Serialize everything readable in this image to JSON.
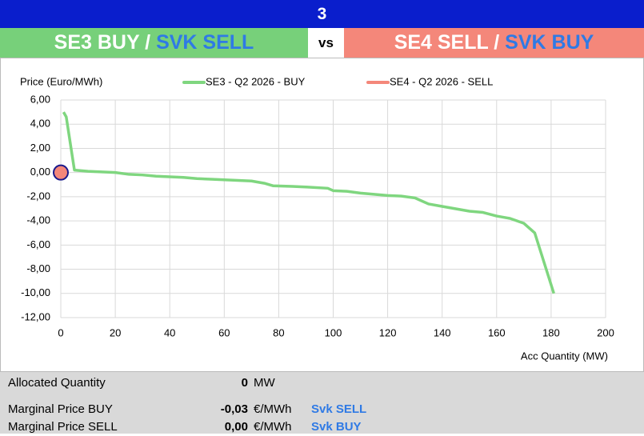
{
  "header": {
    "number": "3",
    "left_a": "SE3 BUY /",
    "left_b": "SVK SELL",
    "vs": "vs",
    "right_a": "SE4 SELL /",
    "right_b": "SVK BUY"
  },
  "chart_data": {
    "type": "line",
    "ylabel": "Price (Euro/MWh)",
    "xlabel": "Acc Quantity (MW)",
    "xlim": [
      0,
      200
    ],
    "xticks": [
      0,
      20,
      40,
      60,
      80,
      100,
      120,
      140,
      160,
      180,
      200
    ],
    "ylim": [
      -12,
      6
    ],
    "yticks": [
      {
        "value": -12,
        "label": "-12,00"
      },
      {
        "value": -10,
        "label": "-10,00"
      },
      {
        "value": -8,
        "label": "-8,00"
      },
      {
        "value": -6,
        "label": "-6,00"
      },
      {
        "value": -4,
        "label": "-4,00"
      },
      {
        "value": -2,
        "label": "-2,00"
      },
      {
        "value": 0,
        "label": "0,00"
      },
      {
        "value": 2,
        "label": "2,00"
      },
      {
        "value": 4,
        "label": "4,00"
      },
      {
        "value": 6,
        "label": "6,00"
      }
    ],
    "grid": true,
    "series": [
      {
        "name": "SE3 - Q2 2026 - BUY",
        "color": "#7fd67f",
        "x": [
          1,
          2,
          5,
          10,
          15,
          20,
          25,
          30,
          35,
          40,
          45,
          50,
          55,
          60,
          65,
          70,
          75,
          78,
          85,
          90,
          98,
          100,
          105,
          110,
          115,
          120,
          125,
          130,
          135,
          140,
          145,
          150,
          155,
          160,
          165,
          170,
          174,
          181
        ],
        "values": [
          5.0,
          4.6,
          0.2,
          0.1,
          0.05,
          0,
          -0.15,
          -0.2,
          -0.3,
          -0.35,
          -0.4,
          -0.5,
          -0.55,
          -0.6,
          -0.65,
          -0.7,
          -0.9,
          -1.1,
          -1.15,
          -1.2,
          -1.3,
          -1.5,
          -1.55,
          -1.7,
          -1.8,
          -1.9,
          -1.95,
          -2.1,
          -2.6,
          -2.8,
          -3.0,
          -3.2,
          -3.3,
          -3.6,
          -3.8,
          -4.2,
          -5.0,
          -10
        ]
      },
      {
        "name": "SE4 - Q2 2026 - SELL",
        "color": "#f4877a",
        "x": [
          0
        ],
        "values": [
          0
        ]
      }
    ]
  },
  "footer": {
    "rows": [
      {
        "label": "Allocated Quantity",
        "value": "0",
        "unit": "MW"
      },
      {
        "label": "Marginal Price BUY",
        "value": "-0,03",
        "unit": "€/MWh",
        "link": "Svk SELL"
      },
      {
        "label": "Marginal Price SELL",
        "value": "0,00",
        "unit": "€/MWh",
        "link": "Svk BUY"
      }
    ]
  }
}
